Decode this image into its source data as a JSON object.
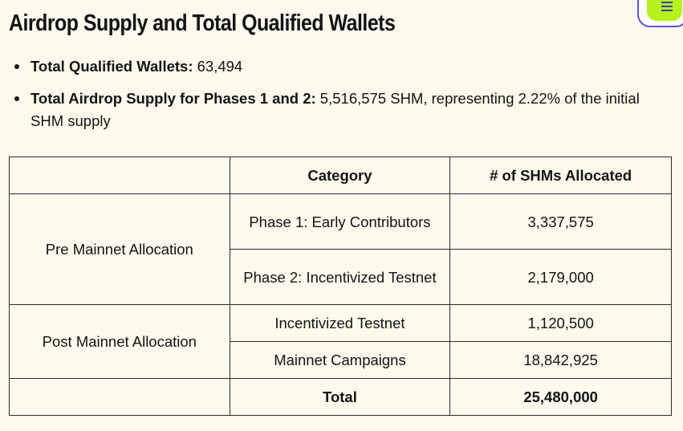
{
  "header": {
    "title": "Airdrop Supply and Total Qualified Wallets"
  },
  "bullets": [
    {
      "label": "Total Qualified Wallets:",
      "text": " 63,494"
    },
    {
      "label": "Total Airdrop Supply for Phases 1 and 2:",
      "text": " 5,516,575 SHM, representing 2.22% of the initial SHM supply"
    }
  ],
  "table": {
    "headers": [
      "",
      "Category",
      "# of SHMs Allocated"
    ],
    "groups": [
      {
        "name": "Pre Mainnet Allocation",
        "rows": [
          {
            "category": "Phase 1: Early Contributors",
            "allocated": "3,337,575"
          },
          {
            "category": "Phase 2: Incentivized Testnet",
            "allocated": "2,179,000"
          }
        ]
      },
      {
        "name": "Post Mainnet Allocation",
        "rows": [
          {
            "category": "Incentivized Testnet",
            "allocated": "1,120,500"
          },
          {
            "category": "Mainnet Campaigns",
            "allocated": "18,842,925"
          }
        ]
      }
    ],
    "total": {
      "label": "Total",
      "value": "25,480,000"
    }
  },
  "colors": {
    "background": "#fcf9ed",
    "text": "#141414",
    "menu_button_accent": "#b6f21d",
    "menu_button_border": "#5b53d8"
  },
  "icons": {
    "menu": "hamburger-menu-icon"
  }
}
